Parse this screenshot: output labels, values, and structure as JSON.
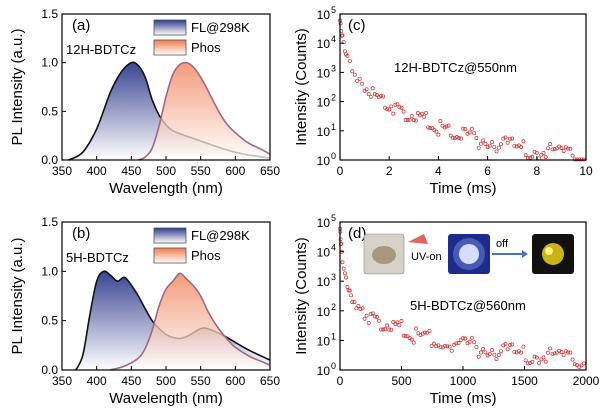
{
  "chart_data": [
    {
      "type": "area",
      "panel": "(a)",
      "annotation": "12H-BDTCz",
      "xlabel": "Wavelength (nm)",
      "ylabel": "PL Intensity (a.u.)",
      "xlim": [
        350,
        650
      ],
      "ylim": [
        0,
        1.5
      ],
      "xticks": [
        "350",
        "400",
        "450",
        "500",
        "550",
        "600",
        "650"
      ],
      "yticks": [
        "0.0",
        "0.5",
        "1.0",
        "1.5"
      ],
      "legend_position": "top-right",
      "series": [
        {
          "name": "FL@298K",
          "color": "#2e3a8c",
          "x": [
            360,
            380,
            400,
            420,
            435,
            450,
            460,
            470,
            480,
            490,
            500,
            510,
            520,
            540,
            560,
            580,
            600,
            620,
            650
          ],
          "y": [
            0.0,
            0.08,
            0.32,
            0.7,
            0.9,
            1.0,
            0.97,
            0.85,
            0.62,
            0.46,
            0.36,
            0.3,
            0.27,
            0.22,
            0.17,
            0.12,
            0.08,
            0.05,
            0.02
          ]
        },
        {
          "name": "Phos",
          "color": "#c0605a",
          "x": [
            460,
            470,
            480,
            490,
            500,
            510,
            520,
            530,
            540,
            550,
            560,
            570,
            580,
            590,
            600,
            610,
            620,
            640,
            650
          ],
          "y": [
            0.0,
            0.03,
            0.12,
            0.35,
            0.65,
            0.88,
            0.98,
            1.0,
            0.95,
            0.85,
            0.72,
            0.58,
            0.45,
            0.35,
            0.28,
            0.22,
            0.17,
            0.1,
            0.06
          ]
        }
      ]
    },
    {
      "type": "scatter",
      "panel": "(c)",
      "annotation": "12H-BDTCz@550nm",
      "xlabel": "Time (ms)",
      "ylabel": "Intensity (Counts)",
      "xlim": [
        0,
        10
      ],
      "ylim": [
        1,
        100000
      ],
      "yscale": "log",
      "xticks": [
        "0",
        "2",
        "4",
        "6",
        "8",
        "10"
      ],
      "yticks": [
        "10",
        "10",
        "10",
        "10",
        "10",
        "10"
      ],
      "yexp": [
        "0",
        "1",
        "2",
        "3",
        "4",
        "5"
      ],
      "series": [
        {
          "name": "",
          "color": "#d03030",
          "x": [
            0,
            0.05,
            0.1,
            0.2,
            0.3,
            0.5,
            0.8,
            1,
            1.5,
            2,
            2.5,
            3,
            3.5,
            4,
            4.5,
            5,
            6,
            7,
            8,
            9,
            10
          ],
          "y": [
            60000,
            30000,
            15000,
            6000,
            3000,
            1200,
            500,
            300,
            150,
            80,
            45,
            30,
            20,
            14,
            10,
            7,
            4.5,
            3,
            2.2,
            1.8,
            1.5
          ]
        }
      ]
    },
    {
      "type": "area",
      "panel": "(b)",
      "annotation": "5H-BDTCz",
      "xlabel": "Wavelength (nm)",
      "ylabel": "PL Intensity (a.u.)",
      "xlim": [
        350,
        650
      ],
      "ylim": [
        0,
        1.5
      ],
      "xticks": [
        "350",
        "400",
        "450",
        "500",
        "550",
        "600",
        "650"
      ],
      "yticks": [
        "0.0",
        "0.5",
        "1.0",
        "1.5"
      ],
      "legend_position": "top-right",
      "series": [
        {
          "name": "FL@298K",
          "color": "#2e3a8c",
          "x": [
            370,
            380,
            390,
            400,
            410,
            420,
            430,
            440,
            450,
            460,
            470,
            480,
            490,
            500,
            510,
            520,
            530,
            540,
            550,
            560,
            580,
            600,
            620,
            650
          ],
          "y": [
            0.0,
            0.15,
            0.55,
            0.9,
            1.0,
            0.96,
            0.9,
            0.94,
            0.86,
            0.75,
            0.62,
            0.5,
            0.42,
            0.36,
            0.33,
            0.32,
            0.34,
            0.38,
            0.42,
            0.42,
            0.36,
            0.28,
            0.2,
            0.1
          ]
        },
        {
          "name": "Phos",
          "color": "#c0605a",
          "x": [
            420,
            440,
            460,
            470,
            480,
            490,
            500,
            510,
            520,
            530,
            540,
            550,
            560,
            570,
            580,
            590,
            600,
            620,
            640,
            650
          ],
          "y": [
            0.0,
            0.04,
            0.12,
            0.22,
            0.4,
            0.65,
            0.82,
            0.9,
            0.98,
            0.92,
            0.85,
            0.75,
            0.6,
            0.48,
            0.38,
            0.3,
            0.23,
            0.14,
            0.08,
            0.05
          ]
        }
      ]
    },
    {
      "type": "scatter",
      "panel": "(d)",
      "annotation": "5H-BDTCz@560nm",
      "inset_labels": [
        "UV-on",
        "off"
      ],
      "xlabel": "Time (ms)",
      "ylabel": "Intensity (Counts)",
      "xlim": [
        0,
        2000
      ],
      "ylim": [
        1,
        100000
      ],
      "yscale": "log",
      "xticks": [
        "0",
        "500",
        "1000",
        "1500",
        "2000"
      ],
      "yticks": [
        "10",
        "10",
        "10",
        "10",
        "10",
        "10"
      ],
      "yexp": [
        "0",
        "1",
        "2",
        "3",
        "4",
        "5"
      ],
      "series": [
        {
          "name": "",
          "color": "#d03030",
          "x": [
            0,
            5,
            10,
            20,
            40,
            60,
            80,
            100,
            150,
            200,
            300,
            400,
            500,
            600,
            800,
            1000,
            1200,
            1400,
            1600,
            1800,
            2000
          ],
          "y": [
            60000,
            30000,
            15000,
            5000,
            1500,
            700,
            400,
            250,
            130,
            80,
            45,
            30,
            22,
            16,
            10,
            7,
            5,
            4,
            3.3,
            2.8,
            2.5
          ]
        }
      ]
    }
  ]
}
